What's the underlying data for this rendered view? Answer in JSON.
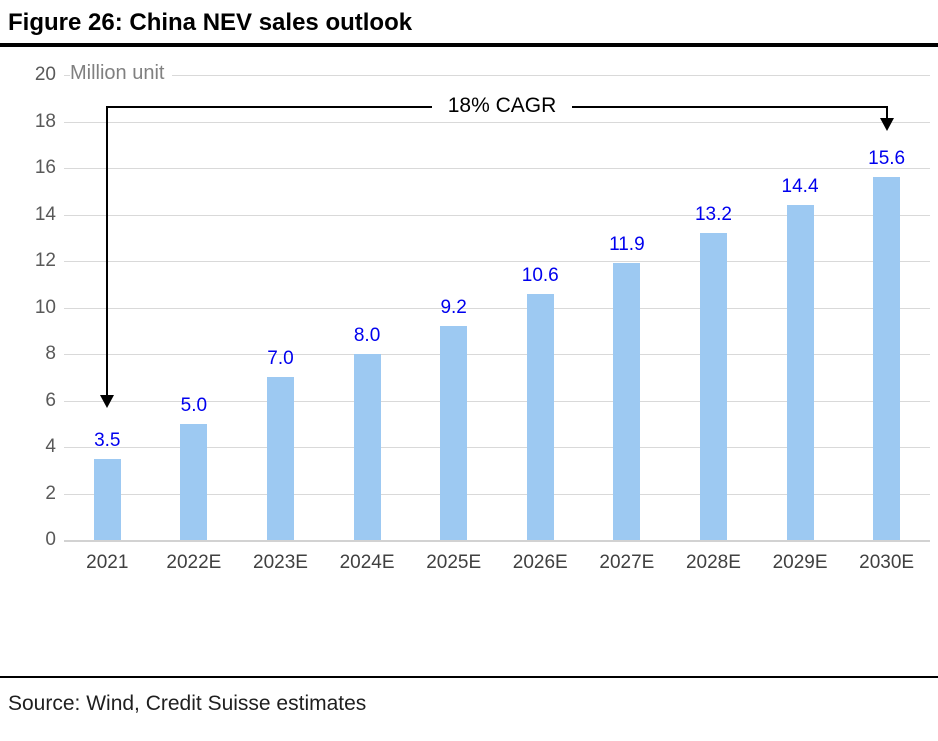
{
  "figure": {
    "title": "Figure 26: China NEV sales outlook",
    "source": "Source: Wind, Credit Suisse estimates"
  },
  "chart_data": {
    "type": "bar",
    "title": "Figure 26: China NEV sales outlook",
    "unit_label": "Million unit",
    "annotation": "18% CAGR",
    "categories": [
      "2021",
      "2022E",
      "2023E",
      "2024E",
      "2025E",
      "2026E",
      "2027E",
      "2028E",
      "2029E",
      "2030E"
    ],
    "values": [
      3.5,
      5.0,
      7.0,
      8.0,
      9.2,
      10.6,
      11.9,
      13.2,
      14.4,
      15.6
    ],
    "value_labels": [
      "3.5",
      "5.0",
      "7.0",
      "8.0",
      "9.2",
      "10.6",
      "11.9",
      "13.2",
      "14.4",
      "15.6"
    ],
    "xlabel": "",
    "ylabel": "Million unit",
    "ylim": [
      0,
      20
    ],
    "ytick_step": 2,
    "yticks": [
      "20",
      "18",
      "16",
      "14",
      "12",
      "10",
      "8",
      "6",
      "4",
      "2",
      "0"
    ],
    "grid": true,
    "legend": "none",
    "colors": {
      "bar": "#9dc9f2",
      "data_label": "#0000ee",
      "grid": "#d9d9d9",
      "ytick_label": "#595959",
      "xtick_label": "#404040",
      "unit_label": "#808080",
      "annotation": "#000000"
    }
  }
}
